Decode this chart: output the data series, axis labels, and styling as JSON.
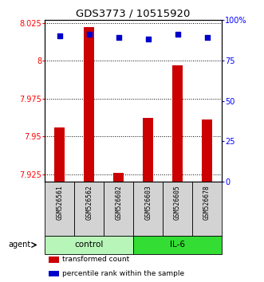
{
  "title": "GDS3773 / 10515920",
  "samples": [
    "GSM526561",
    "GSM526562",
    "GSM526602",
    "GSM526603",
    "GSM526605",
    "GSM526678"
  ],
  "red_values": [
    7.956,
    8.022,
    7.926,
    7.962,
    7.997,
    7.961
  ],
  "blue_values": [
    90,
    91,
    89,
    88,
    91,
    89
  ],
  "ylim_left": [
    7.92,
    8.027
  ],
  "ylim_right": [
    0,
    100
  ],
  "yticks_left": [
    7.925,
    7.95,
    7.975,
    8.0,
    8.025
  ],
  "yticks_right": [
    0,
    25,
    50,
    75,
    100
  ],
  "ytick_labels_left": [
    "7.925",
    "7.95",
    "7.975",
    "8",
    "8.025"
  ],
  "ytick_labels_right": [
    "0",
    "25",
    "50",
    "75",
    "100%"
  ],
  "groups": [
    {
      "label": "control",
      "indices": [
        0,
        1,
        2
      ],
      "color": "#b8f5b8"
    },
    {
      "label": "IL-6",
      "indices": [
        3,
        4,
        5
      ],
      "color": "#33dd33"
    }
  ],
  "legend_items": [
    {
      "color": "#cc0000",
      "label": "transformed count"
    },
    {
      "color": "#0000cc",
      "label": "percentile rank within the sample"
    }
  ],
  "bar_color": "#cc0000",
  "dot_color": "#0000cc",
  "background_color": "#ffffff",
  "sample_bg": "#d3d3d3",
  "bar_width": 0.35
}
